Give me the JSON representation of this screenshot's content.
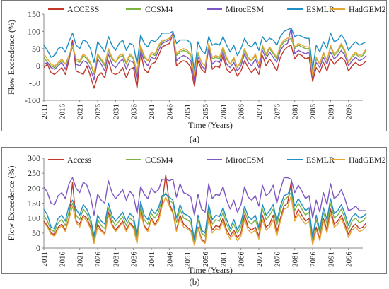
{
  "chart_data": [
    {
      "type": "line",
      "panel_label": "(a)",
      "ylabel": "Flow Exceedence (%)",
      "xlabel": "Time (Years)",
      "ylim": [
        -100,
        150
      ],
      "yticks": [
        -100,
        -50,
        0,
        50,
        100,
        150
      ],
      "x_start": 2011,
      "x_end": 2100,
      "xticks": [
        2011,
        2016,
        2021,
        2026,
        2031,
        2036,
        2041,
        2046,
        2051,
        2056,
        2061,
        2066,
        2071,
        2076,
        2081,
        2086,
        2091,
        2096
      ],
      "legend_position": "top",
      "series": [
        {
          "name": "ACCESS",
          "color": "#c0392b",
          "values": [
            -5,
            5,
            -20,
            -25,
            -15,
            -5,
            -25,
            15,
            75,
            -15,
            -20,
            -25,
            0,
            -30,
            -65,
            -30,
            -20,
            -35,
            15,
            -20,
            -25,
            -20,
            -5,
            -35,
            -10,
            -5,
            -65,
            40,
            -10,
            -20,
            5,
            10,
            30,
            55,
            60,
            65,
            90,
            0,
            10,
            15,
            10,
            -5,
            -60,
            15,
            -10,
            -20,
            55,
            -10,
            0,
            -5,
            30,
            -10,
            -20,
            -5,
            -30,
            -15,
            15,
            -5,
            -20,
            -5,
            -25,
            30,
            0,
            20,
            5,
            -15,
            25,
            45,
            55,
            60,
            20,
            35,
            30,
            20,
            25,
            -45,
            -5,
            -20,
            10,
            -15,
            20,
            5,
            15,
            25,
            15,
            -15,
            0,
            10,
            0,
            5,
            15
          ]
        },
        {
          "name": "CCSM4",
          "color": "#7cb342",
          "values": [
            25,
            10,
            0,
            -5,
            5,
            15,
            5,
            20,
            55,
            15,
            10,
            30,
            20,
            5,
            -25,
            30,
            15,
            0,
            45,
            20,
            10,
            25,
            30,
            5,
            30,
            20,
            -25,
            55,
            25,
            15,
            35,
            30,
            55,
            70,
            75,
            80,
            85,
            30,
            40,
            45,
            40,
            30,
            -35,
            35,
            10,
            0,
            60,
            20,
            25,
            20,
            50,
            20,
            5,
            20,
            -5,
            10,
            45,
            20,
            15,
            30,
            5,
            55,
            30,
            50,
            35,
            20,
            55,
            70,
            75,
            80,
            50,
            60,
            55,
            50,
            50,
            -25,
            20,
            5,
            35,
            15,
            55,
            30,
            40,
            60,
            40,
            10,
            25,
            35,
            25,
            30,
            45
          ]
        },
        {
          "name": "MirocESM",
          "color": "#7e57c2",
          "values": [
            5,
            10,
            -5,
            -10,
            0,
            10,
            -10,
            20,
            65,
            5,
            0,
            15,
            10,
            -10,
            -40,
            20,
            5,
            -15,
            35,
            5,
            -5,
            10,
            20,
            -10,
            15,
            10,
            -40,
            45,
            15,
            0,
            25,
            20,
            45,
            65,
            70,
            75,
            95,
            15,
            25,
            30,
            25,
            15,
            -45,
            25,
            0,
            -10,
            50,
            5,
            15,
            10,
            40,
            5,
            -5,
            10,
            -15,
            0,
            35,
            10,
            0,
            20,
            -5,
            45,
            20,
            40,
            25,
            10,
            45,
            60,
            65,
            110,
            35,
            45,
            40,
            35,
            40,
            -35,
            10,
            -5,
            25,
            5,
            40,
            20,
            30,
            45,
            30,
            0,
            15,
            25,
            15,
            20,
            30
          ]
        },
        {
          "name": "ESMLR",
          "color": "#1f8fc4",
          "values": [
            60,
            45,
            25,
            30,
            50,
            55,
            40,
            70,
            95,
            60,
            50,
            75,
            70,
            50,
            10,
            70,
            55,
            40,
            85,
            60,
            45,
            65,
            75,
            45,
            65,
            60,
            5,
            90,
            65,
            55,
            75,
            70,
            80,
            95,
            95,
            95,
            100,
            65,
            75,
            75,
            75,
            65,
            -20,
            70,
            45,
            35,
            85,
            60,
            65,
            60,
            85,
            60,
            40,
            60,
            30,
            50,
            80,
            60,
            55,
            70,
            45,
            85,
            70,
            80,
            75,
            60,
            85,
            100,
            105,
            110,
            85,
            90,
            85,
            80,
            80,
            -10,
            60,
            40,
            70,
            50,
            95,
            70,
            75,
            90,
            75,
            45,
            60,
            70,
            60,
            65,
            70
          ]
        },
        {
          "name": "HadGEM2",
          "color": "#e6a635",
          "values": [
            35,
            20,
            5,
            0,
            10,
            20,
            5,
            30,
            60,
            20,
            15,
            35,
            25,
            10,
            -20,
            35,
            20,
            5,
            50,
            25,
            10,
            30,
            35,
            10,
            35,
            25,
            -20,
            60,
            30,
            15,
            40,
            35,
            60,
            75,
            75,
            80,
            88,
            35,
            45,
            50,
            45,
            35,
            -30,
            40,
            10,
            0,
            65,
            25,
            30,
            25,
            55,
            25,
            5,
            25,
            -5,
            15,
            50,
            25,
            15,
            35,
            5,
            60,
            35,
            55,
            40,
            25,
            60,
            75,
            80,
            85,
            55,
            65,
            60,
            55,
            55,
            -30,
            25,
            5,
            40,
            15,
            60,
            35,
            45,
            65,
            45,
            10,
            30,
            40,
            30,
            35,
            50
          ]
        }
      ]
    },
    {
      "type": "line",
      "panel_label": "(b)",
      "ylabel": "Flow Exceedence (%)",
      "xlabel": "Time (Years)",
      "ylim": [
        0,
        300
      ],
      "yticks": [
        0,
        50,
        100,
        150,
        200,
        250,
        300
      ],
      "x_start": 2011,
      "x_end": 2100,
      "xticks": [
        2011,
        2016,
        2021,
        2026,
        2031,
        2036,
        2041,
        2046,
        2051,
        2056,
        2061,
        2066,
        2071,
        2076,
        2081,
        2086,
        2091,
        2096
      ],
      "legend_position": "top",
      "series": [
        {
          "name": "Access",
          "color": "#c0392b",
          "values": [
            90,
            75,
            50,
            45,
            70,
            80,
            60,
            100,
            220,
            90,
            80,
            110,
            100,
            70,
            20,
            80,
            60,
            50,
            120,
            80,
            60,
            75,
            90,
            60,
            85,
            70,
            20,
            130,
            75,
            60,
            100,
            80,
            100,
            150,
            245,
            150,
            120,
            60,
            110,
            80,
            70,
            60,
            10,
            70,
            30,
            20,
            110,
            60,
            75,
            70,
            100,
            60,
            40,
            60,
            35,
            50,
            110,
            70,
            60,
            70,
            40,
            110,
            70,
            80,
            110,
            50,
            100,
            140,
            150,
            220,
            100,
            130,
            110,
            90,
            100,
            15,
            70,
            30,
            100,
            60,
            130,
            80,
            90,
            110,
            80,
            45,
            70,
            80,
            65,
            70,
            85
          ]
        },
        {
          "name": "CCSM4",
          "color": "#7cb342",
          "values": [
            110,
            90,
            60,
            55,
            85,
            95,
            75,
            120,
            150,
            110,
            95,
            130,
            115,
            85,
            30,
            95,
            75,
            65,
            135,
            95,
            75,
            90,
            105,
            75,
            100,
            90,
            30,
            140,
            95,
            80,
            115,
            100,
            120,
            165,
            185,
            160,
            150,
            85,
            130,
            100,
            95,
            85,
            20,
            95,
            50,
            40,
            130,
            80,
            95,
            90,
            120,
            80,
            55,
            80,
            50,
            70,
            125,
            90,
            80,
            95,
            60,
            130,
            95,
            110,
            130,
            75,
            125,
            160,
            170,
            185,
            125,
            150,
            130,
            110,
            120,
            30,
            95,
            50,
            120,
            80,
            150,
            100,
            110,
            130,
            100,
            60,
            90,
            100,
            85,
            90,
            105
          ]
        },
        {
          "name": "MirocESM",
          "color": "#7e57c2",
          "values": [
            205,
            185,
            150,
            145,
            175,
            185,
            165,
            215,
            235,
            200,
            185,
            220,
            210,
            175,
            110,
            180,
            160,
            150,
            225,
            185,
            165,
            180,
            195,
            160,
            190,
            175,
            115,
            205,
            180,
            165,
            200,
            185,
            195,
            230,
            230,
            225,
            230,
            170,
            215,
            185,
            180,
            170,
            110,
            180,
            130,
            120,
            215,
            165,
            180,
            175,
            205,
            160,
            130,
            160,
            120,
            145,
            205,
            170,
            160,
            175,
            140,
            210,
            175,
            185,
            210,
            150,
            195,
            235,
            235,
            230,
            185,
            210,
            190,
            165,
            175,
            100,
            160,
            120,
            185,
            145,
            215,
            165,
            175,
            195,
            165,
            125,
            130,
            140,
            125,
            125,
            125
          ]
        },
        {
          "name": "ESMLR",
          "color": "#1f8fc4",
          "values": [
            130,
            110,
            70,
            65,
            100,
            110,
            90,
            140,
            160,
            130,
            110,
            145,
            130,
            100,
            40,
            110,
            90,
            80,
            150,
            110,
            90,
            105,
            120,
            90,
            115,
            105,
            40,
            155,
            110,
            95,
            130,
            115,
            135,
            175,
            180,
            170,
            160,
            100,
            145,
            115,
            110,
            100,
            25,
            110,
            60,
            50,
            145,
            95,
            110,
            105,
            135,
            95,
            65,
            95,
            60,
            85,
            140,
            105,
            95,
            110,
            70,
            145,
            110,
            125,
            145,
            90,
            140,
            175,
            180,
            200,
            140,
            165,
            145,
            125,
            135,
            35,
            110,
            60,
            135,
            95,
            165,
            115,
            125,
            145,
            115,
            75,
            105,
            115,
            100,
            105,
            115
          ]
        },
        {
          "name": "HadGEM2",
          "color": "#e6a635",
          "values": [
            85,
            70,
            45,
            40,
            65,
            75,
            55,
            95,
            140,
            85,
            70,
            105,
            90,
            65,
            15,
            70,
            55,
            45,
            110,
            75,
            55,
            70,
            85,
            55,
            80,
            65,
            15,
            120,
            70,
            55,
            95,
            75,
            90,
            140,
            170,
            140,
            115,
            55,
            100,
            70,
            65,
            55,
            8,
            65,
            25,
            15,
            100,
            50,
            65,
            60,
            90,
            50,
            30,
            50,
            25,
            40,
            95,
            60,
            50,
            60,
            30,
            95,
            60,
            70,
            95,
            40,
            90,
            130,
            135,
            175,
            90,
            115,
            95,
            80,
            90,
            10,
            60,
            25,
            90,
            50,
            115,
            70,
            80,
            100,
            70,
            35,
            60,
            70,
            55,
            60,
            75
          ]
        }
      ]
    }
  ]
}
